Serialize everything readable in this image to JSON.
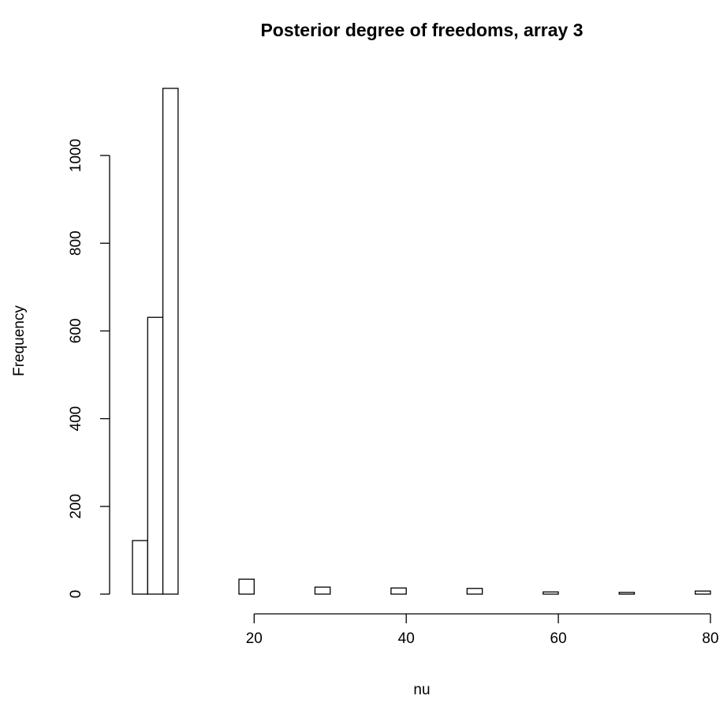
{
  "chart_data": {
    "type": "histogram",
    "title": "Posterior degree of freedoms, array 3",
    "x_label": "nu",
    "y_label": "Frequency",
    "bins": [
      4,
      6,
      8,
      10,
      12,
      14,
      16,
      18,
      20,
      22,
      24,
      26,
      28,
      30,
      32,
      34,
      36,
      38,
      40,
      42,
      44,
      46,
      48,
      50,
      52,
      54,
      56,
      58,
      60,
      62,
      64,
      66,
      68,
      70,
      72,
      74,
      76,
      78,
      80
    ],
    "counts": [
      122,
      631,
      1153,
      0,
      0,
      0,
      0,
      34,
      0,
      0,
      0,
      0,
      16,
      0,
      0,
      0,
      0,
      14,
      0,
      0,
      0,
      0,
      13,
      0,
      0,
      0,
      0,
      5,
      0,
      0,
      0,
      0,
      4,
      0,
      0,
      0,
      0,
      7
    ],
    "color": "#ffffff",
    "xlim": [
      4,
      80
    ],
    "xticks": [
      20,
      40,
      60,
      80
    ],
    "ylim": [
      0,
      1153
    ],
    "yticks": [
      0,
      200,
      400,
      600,
      800,
      1000
    ],
    "grid": false
  }
}
